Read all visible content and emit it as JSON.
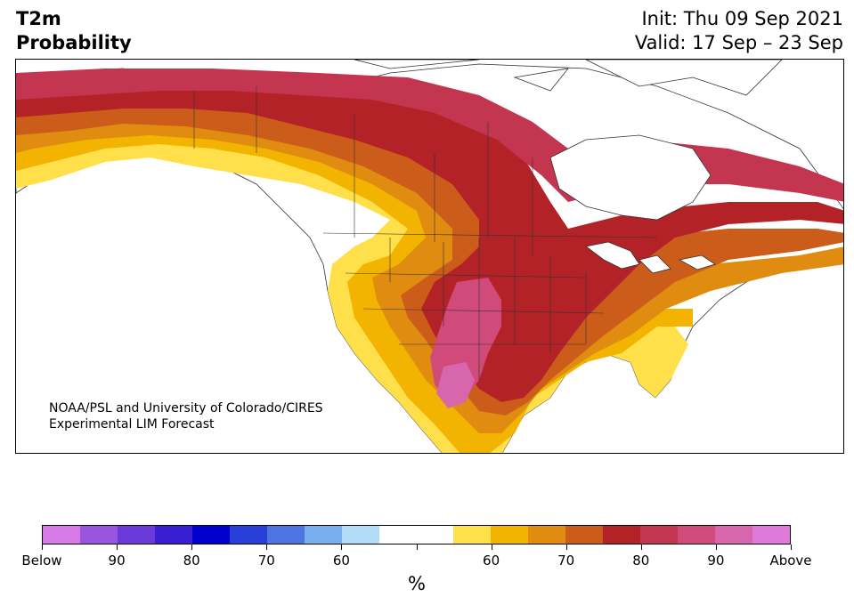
{
  "header": {
    "title_line1": "T2m",
    "title_line2": "Probability",
    "init": "Init: Thu 09 Sep 2021",
    "valid": "Valid: 17 Sep – 23 Sep"
  },
  "credit": {
    "line1": "NOAA/PSL and University of Colorado/CIRES",
    "line2": "Experimental LIM Forecast"
  },
  "colorbar": {
    "colors": [
      "#d57ae6",
      "#9955dd",
      "#6a3ad8",
      "#3a1fd2",
      "#0000cc",
      "#2840d8",
      "#4d74e2",
      "#78aeee",
      "#b2dcf8",
      "#ffffff",
      "#ffffff",
      "#ffe04a",
      "#f2b400",
      "#e08c10",
      "#cc5c1a",
      "#b22226",
      "#c43650",
      "#d04a7a",
      "#d866ad",
      "#e07ada"
    ],
    "labels": [
      "Below",
      "90",
      "80",
      "70",
      "60",
      "",
      "60",
      "70",
      "80",
      "90",
      "Above"
    ],
    "unit": "%"
  },
  "legend_colors": {
    "above_60": "#ffe04a",
    "above_70": "#e08c10",
    "above_80": "#b22226",
    "above_90": "#d866ad"
  }
}
